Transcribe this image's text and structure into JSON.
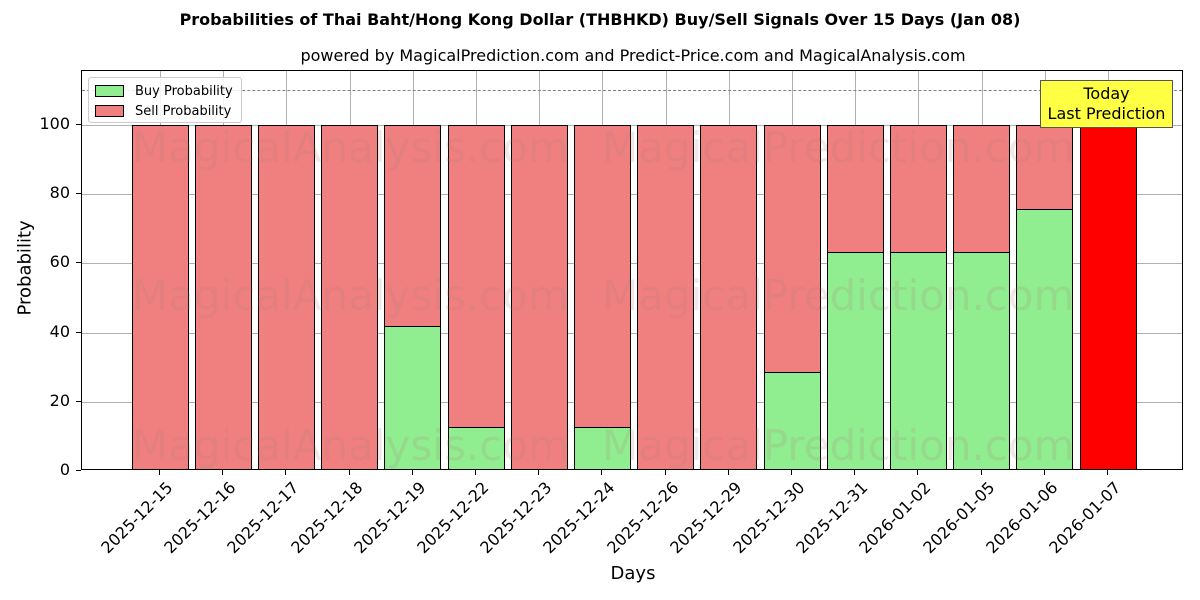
{
  "title": "Probabilities of Thai Baht/Hong Kong Dollar (THBHKD) Buy/Sell Signals Over 15 Days (Jan 08)",
  "subtitle": "powered by MagicalPrediction.com and Predict-Price.com and MagicalAnalysis.com",
  "legend": {
    "buy": "Buy Probability",
    "sell": "Sell Probability"
  },
  "annotation": {
    "line1": "Today",
    "line2": "Last Prediction"
  },
  "watermarks": [
    "MagicalAnalysis.com",
    "MagicalPrediction.com"
  ],
  "colors": {
    "buy": "#90ee90",
    "sell": "#f08080",
    "today": "#ff0000",
    "annotation_bg": "#ffff44"
  },
  "chart_data": {
    "type": "bar",
    "stacked": true,
    "title": "Probabilities of Thai Baht/Hong Kong Dollar (THBHKD) Buy/Sell Signals Over 15 Days (Jan 08)",
    "subtitle": "powered by MagicalPrediction.com and Predict-Price.com and MagicalAnalysis.com",
    "xlabel": "Days",
    "ylabel": "Probability",
    "ylim": [
      0,
      115
    ],
    "yticks": [
      0,
      20,
      40,
      60,
      80,
      100
    ],
    "grid": true,
    "legend_position": "upper left",
    "reference_line": 110,
    "categories": [
      "2025-12-15",
      "2025-12-16",
      "2025-12-17",
      "2025-12-18",
      "2025-12-19",
      "2025-12-22",
      "2025-12-23",
      "2025-12-24",
      "2025-12-26",
      "2025-12-29",
      "2025-12-30",
      "2025-12-31",
      "2026-01-02",
      "2026-01-05",
      "2026-01-06",
      "2026-01-07"
    ],
    "series": [
      {
        "name": "Buy Probability",
        "values": [
          0,
          0,
          0,
          0,
          41.9,
          12.6,
          0,
          12.6,
          0,
          0,
          28.7,
          63.4,
          63.4,
          63.4,
          75.6,
          0
        ]
      },
      {
        "name": "Sell Probability",
        "values": [
          100,
          100,
          100,
          100,
          58.1,
          87.4,
          100,
          87.4,
          100,
          100,
          71.3,
          36.6,
          36.6,
          36.6,
          24.4,
          100
        ]
      }
    ],
    "highlight": {
      "category": "2026-01-07",
      "label": "Today\nLast Prediction",
      "color": "#ff0000"
    }
  }
}
